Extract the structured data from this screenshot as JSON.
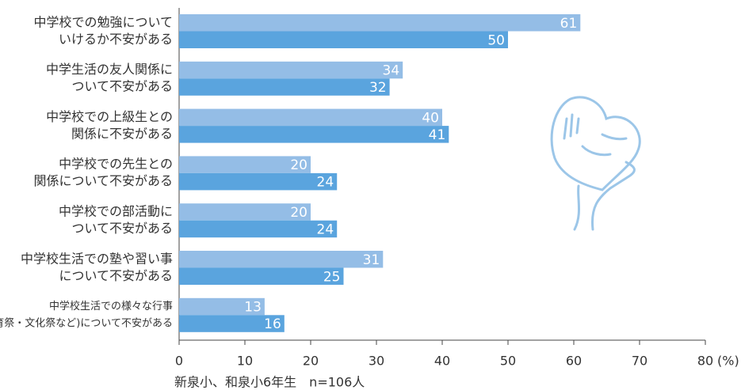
{
  "chart_data": {
    "type": "bar",
    "orientation": "horizontal",
    "categories": [
      [
        "中学校での勉強について",
        "いけるか不安がある"
      ],
      [
        "中学生活の友人関係に",
        "ついて不安がある"
      ],
      [
        "中学校での上級生との",
        "関係に不安がある"
      ],
      [
        "中学校での先生との",
        "関係について不安がある"
      ],
      [
        "中学校での部活動に",
        "ついて不安がある"
      ],
      [
        "中学校生活での塾や習い事",
        "について不安がある"
      ],
      [
        "中学校生活での様々な行事",
        "(体育祭・文化祭など)について不安がある"
      ]
    ],
    "series": [
      {
        "color": "#94bde6",
        "values": [
          61,
          34,
          40,
          20,
          20,
          31,
          13
        ]
      },
      {
        "color": "#5aa4de",
        "values": [
          50,
          32,
          41,
          24,
          24,
          25,
          16
        ]
      }
    ],
    "xlim": [
      0,
      80
    ],
    "xticks": [
      0,
      10,
      20,
      30,
      40,
      50,
      60,
      70,
      80
    ],
    "x_unit": "(%)",
    "note": "新泉小、和泉小6年生　n=106人"
  }
}
